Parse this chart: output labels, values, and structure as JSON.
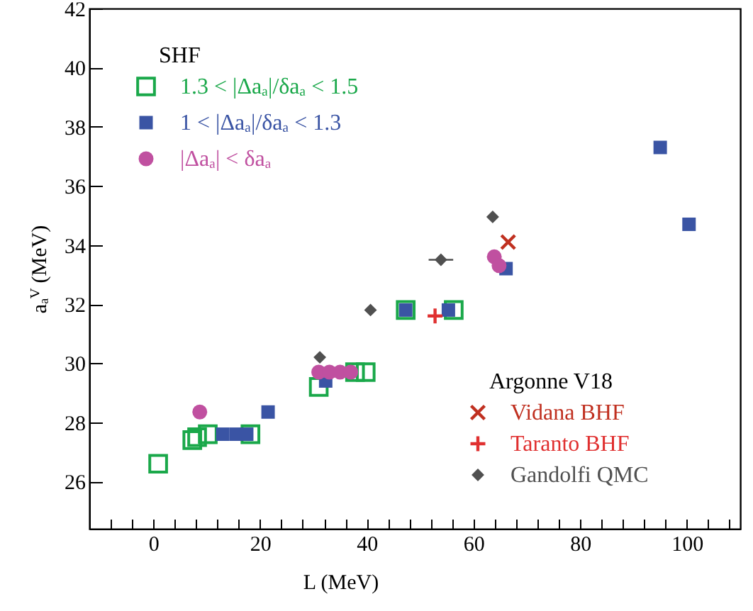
{
  "chart_data": {
    "type": "scatter",
    "xlabel": "L (MeV)",
    "ylabel": "aₐⱽ (MeV)",
    "legend_title": "SHF",
    "legend": "center",
    "annotations": [
      "Argonne V18"
    ],
    "xlim": [
      -12,
      110
    ],
    "ylim": [
      24.4,
      42
    ],
    "xticks": [
      0,
      20,
      40,
      60,
      80,
      100,
      {
        "value": -8,
        "label": null
      },
      {
        "value": -4,
        "label": null
      },
      {
        "value": 4,
        "label": null
      },
      {
        "value": 8,
        "label": null
      },
      {
        "value": 12,
        "label": null
      },
      {
        "value": 16,
        "label": null
      },
      {
        "value": 24,
        "label": null
      },
      {
        "value": 28,
        "label": null
      },
      {
        "value": 32,
        "label": null
      },
      {
        "value": 36,
        "label": null
      },
      {
        "value": 44,
        "label": null
      },
      {
        "value": 48,
        "label": null
      },
      {
        "value": 52,
        "label": null
      },
      {
        "value": 56,
        "label": null
      },
      {
        "value": 64,
        "label": null
      },
      {
        "value": 68,
        "label": null
      },
      {
        "value": 72,
        "label": null
      },
      {
        "value": 76,
        "label": null
      },
      {
        "value": 84,
        "label": null
      },
      {
        "value": 88,
        "label": null
      },
      {
        "value": 92,
        "label": null
      },
      {
        "value": 96,
        "label": null
      },
      {
        "value": 104,
        "label": null
      },
      {
        "value": 108,
        "label": null
      }
    ],
    "yticks": [
      26,
      28,
      30,
      32,
      34,
      36,
      38,
      40,
      42
    ],
    "grid": false,
    "series": [
      {
        "name": "1.3 < |Δaₐ|/δaₐ < 1.5",
        "color": "#1aa84a",
        "marker": "square",
        "x": [
          0.9,
          7.3,
          8.2,
          10.2,
          18.2,
          31.0,
          37.8,
          39.8,
          47.3,
          56.3
        ],
        "values": [
          26.6,
          27.4,
          27.5,
          27.6,
          27.6,
          29.2,
          29.7,
          29.7,
          31.8,
          31.8
        ]
      },
      {
        "name": "1 < |Δaₐ|/δaₐ < 1.3",
        "color": "#3a54a4",
        "marker": "square",
        "x": [
          13.0,
          15.5,
          17.5,
          21.5,
          32.3,
          47.3,
          55.3,
          66.1,
          95.0,
          100.4
        ],
        "values": [
          27.6,
          27.6,
          27.6,
          28.35,
          29.4,
          31.8,
          31.8,
          33.2,
          37.3,
          34.7
        ]
      },
      {
        "name": "|Δaₐ| < δaₐ",
        "color": "#c050a0",
        "marker": "circle",
        "x": [
          8.7,
          31.0,
          33.0,
          35.0,
          37.0,
          63.9,
          64.8
        ],
        "values": [
          28.35,
          29.7,
          29.7,
          29.7,
          29.7,
          33.6,
          33.3
        ]
      },
      {
        "name": "Vidana BHF",
        "color": "#c03020",
        "marker": "x",
        "x": [
          66.5
        ],
        "values": [
          34.1
        ]
      },
      {
        "name": "Taranto BHF",
        "color": "#e03030",
        "marker": "cross",
        "x": [
          52.8
        ],
        "values": [
          31.6
        ]
      },
      {
        "name": "Gandolfi QMC",
        "color": "#505050",
        "marker": "diamond",
        "x": [
          31.2,
          40.7,
          53.9,
          63.6
        ],
        "values": [
          30.2,
          31.8,
          33.5,
          34.95
        ],
        "xerrors": [
          null,
          null,
          2.3,
          null
        ]
      }
    ]
  }
}
